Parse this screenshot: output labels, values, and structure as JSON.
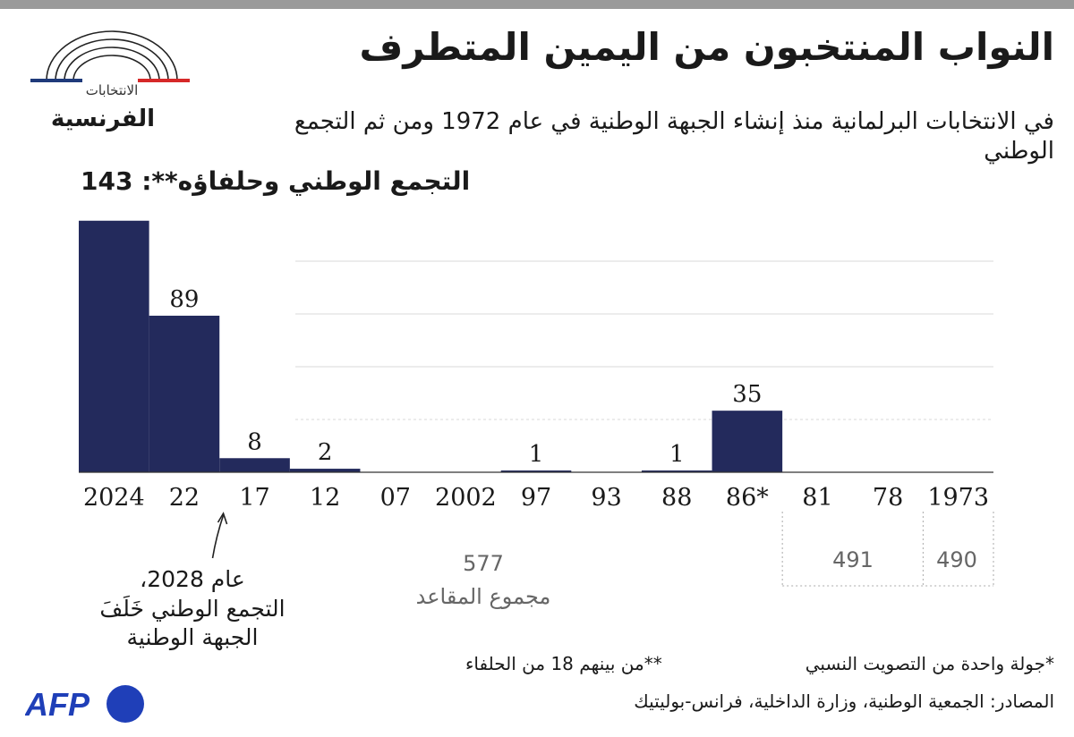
{
  "header": {
    "title": "النواب المنتخبون من اليمين المتطرف",
    "subtitle": "في الانتخابات البرلمانية منذ إنشاء الجبهة الوطنية في عام 1972 ومن ثم التجمع الوطني"
  },
  "logo": {
    "small_text": "الانتخابات",
    "big_text": "الفرنسية",
    "icon": "parliament-arc-icon",
    "colors": [
      "#1f3a7a",
      "#ffffff",
      "#d62828"
    ]
  },
  "chart_data": {
    "type": "bar",
    "highlight_label": "التجمع الوطني وحلفاؤه**: 143",
    "categories": [
      "2024",
      "22",
      "17",
      "12",
      "07",
      "2002",
      "97",
      "93",
      "88",
      "86*",
      "81",
      "78",
      "1973"
    ],
    "values": [
      143,
      89,
      8,
      2,
      0,
      0,
      1,
      0,
      1,
      35,
      0,
      0,
      0
    ],
    "value_labels": [
      "",
      "89",
      "8",
      "2",
      "",
      "",
      "1",
      "",
      "1",
      "35",
      "",
      "",
      ""
    ],
    "ylim": [
      0,
      150
    ],
    "grid": true,
    "bar_color": "#232a5c",
    "annotation": {
      "category": "17",
      "lines": [
        "عام 2028،",
        "التجمع الوطني خَلَفَ",
        "الجبهة الوطنية"
      ]
    },
    "total_seats": [
      {
        "value": "577",
        "label": "مجموع المقاعد",
        "categories": [
          "2024",
          "86*"
        ]
      },
      {
        "value": "491",
        "categories": [
          "81",
          "78"
        ]
      },
      {
        "value": "490",
        "categories": [
          "1973"
        ]
      }
    ]
  },
  "footnotes": {
    "single_round": "*جولة واحدة من التصويت النسبي",
    "allies": "**من بينهم 18 من الحلفاء",
    "sources": "المصادر: الجمعية الوطنية، وزارة الداخلية، فرانس-بوليتيك"
  },
  "agency": {
    "name": "AFP",
    "color": "#1f3fb8"
  }
}
